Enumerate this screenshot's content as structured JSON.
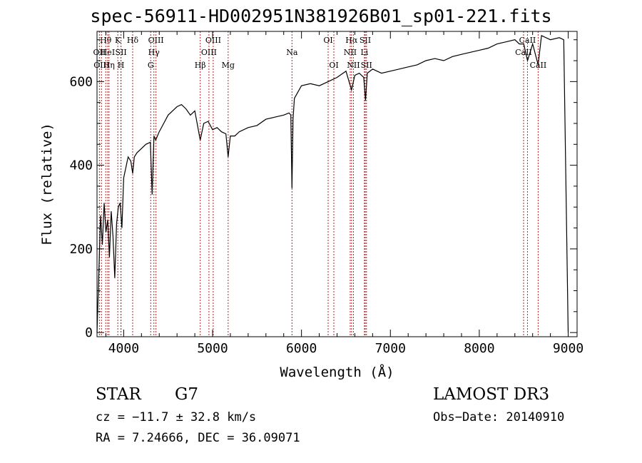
{
  "chart_data": {
    "type": "line",
    "title": "spec-56911-HD002951N381926B01_sp01-221.fits",
    "xlabel": "Wavelength (Å)",
    "ylabel": "Flux (relative)",
    "xlim": [
      3700,
      9100
    ],
    "ylim": [
      -10,
      720
    ],
    "xticks": [
      4000,
      5000,
      6000,
      7000,
      8000,
      9000
    ],
    "yticks": [
      0,
      200,
      400,
      600
    ],
    "grid": false,
    "series": [
      {
        "x": [
          3700,
          3740,
          3760,
          3780,
          3800,
          3820,
          3840,
          3860,
          3880,
          3900,
          3920,
          3940,
          3960,
          3980,
          4000,
          4020,
          4050,
          4080,
          4101,
          4120,
          4150,
          4200,
          4250,
          4300,
          4320,
          4340,
          4360,
          4400,
          4450,
          4500,
          4550,
          4600,
          4650,
          4700,
          4750,
          4800,
          4861,
          4900,
          4950,
          5000,
          5050,
          5100,
          5150,
          5175,
          5200,
          5250,
          5300,
          5400,
          5500,
          5600,
          5700,
          5800,
          5860,
          5880,
          5893,
          5905,
          5920,
          6000,
          6100,
          6200,
          6300,
          6400,
          6500,
          6563,
          6600,
          6650,
          6700,
          6720,
          6740,
          6800,
          6900,
          7000,
          7100,
          7200,
          7300,
          7400,
          7500,
          7600,
          7700,
          7800,
          7900,
          8000,
          8100,
          8200,
          8300,
          8400,
          8450,
          8500,
          8542,
          8600,
          8662,
          8700,
          8800,
          8900,
          8950,
          9000
        ],
        "y": [
          0,
          280,
          210,
          310,
          240,
          270,
          180,
          290,
          230,
          130,
          260,
          300,
          310,
          250,
          370,
          390,
          420,
          410,
          380,
          420,
          430,
          440,
          450,
          455,
          330,
          470,
          460,
          480,
          500,
          520,
          530,
          540,
          545,
          535,
          520,
          530,
          460,
          500,
          505,
          485,
          490,
          480,
          475,
          420,
          470,
          470,
          480,
          490,
          495,
          510,
          515,
          520,
          525,
          520,
          345,
          510,
          560,
          590,
          595,
          590,
          600,
          610,
          625,
          580,
          615,
          620,
          610,
          555,
          620,
          630,
          620,
          625,
          630,
          635,
          640,
          650,
          655,
          650,
          660,
          665,
          670,
          675,
          680,
          690,
          695,
          700,
          690,
          690,
          650,
          690,
          640,
          710,
          700,
          705,
          700,
          0
        ]
      }
    ],
    "lines": [
      {
        "label": "Hθ",
        "x": 3798,
        "row": 1
      },
      {
        "label": "OII",
        "x": 3727,
        "row": 2
      },
      {
        "label": "OIII",
        "x": 3750,
        "row": 3
      },
      {
        "label": "HeI",
        "x": 3820,
        "row": 2
      },
      {
        "label": "Hη",
        "x": 3835,
        "row": 3
      },
      {
        "label": "K",
        "x": 3934,
        "row": 1
      },
      {
        "label": "SII",
        "x": 3970,
        "row": 2
      },
      {
        "label": "H",
        "x": 3969,
        "row": 3
      },
      {
        "label": "Hδ",
        "x": 4101,
        "row": 1
      },
      {
        "label": "OIII",
        "x": 4363,
        "row": 1
      },
      {
        "label": "Hγ",
        "x": 4340,
        "row": 2
      },
      {
        "label": "G",
        "x": 4304,
        "row": 3
      },
      {
        "label": "OIII",
        "x": 5007,
        "row": 1
      },
      {
        "label": "OIII",
        "x": 4959,
        "row": 2
      },
      {
        "label": "Hβ",
        "x": 4861,
        "row": 3
      },
      {
        "label": "Mg",
        "x": 5175,
        "row": 3
      },
      {
        "label": "Na",
        "x": 5893,
        "row": 2
      },
      {
        "label": "OI",
        "x": 6300,
        "row": 1
      },
      {
        "label": "OI",
        "x": 6364,
        "row": 3
      },
      {
        "label": "Hα",
        "x": 6563,
        "row": 1
      },
      {
        "label": "SII",
        "x": 6717,
        "row": 1
      },
      {
        "label": "NII",
        "x": 6548,
        "row": 2
      },
      {
        "label": "Li",
        "x": 6708,
        "row": 2
      },
      {
        "label": "NII",
        "x": 6584,
        "row": 3
      },
      {
        "label": "SII",
        "x": 6731,
        "row": 3
      },
      {
        "label": "CaII",
        "x": 8542,
        "row": 1
      },
      {
        "label": "CaII",
        "x": 8498,
        "row": 2
      },
      {
        "label": "CaII",
        "x": 8662,
        "row": 3
      }
    ]
  },
  "info": {
    "star_label": "STAR",
    "subclass": "G7",
    "survey": "LAMOST DR3",
    "cz": "cz = −11.7 ± 32.8 km/s",
    "obs_date": "Obs−Date: 20140910",
    "radec": "RA =   7.24666, DEC =  36.09071"
  }
}
